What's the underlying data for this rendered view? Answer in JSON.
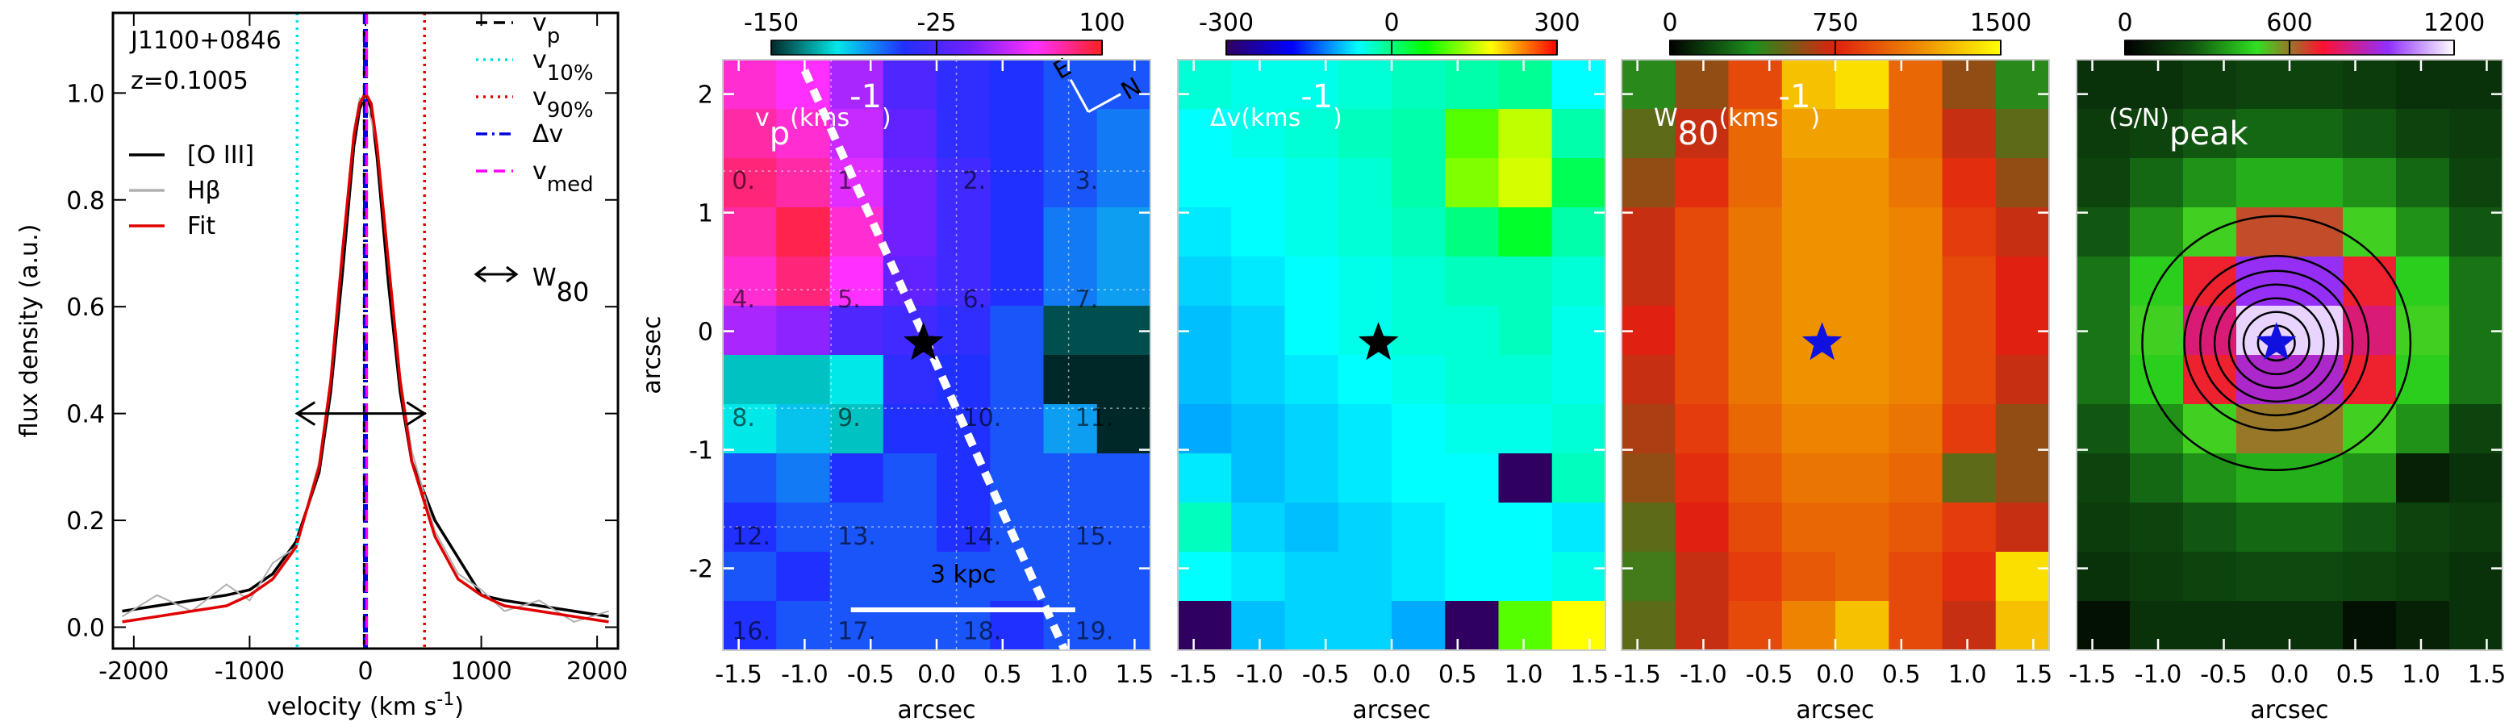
{
  "chart_data": [
    {
      "type": "line",
      "annotations": [
        "J1100+0846",
        "z=0.1005"
      ],
      "xlabel": [
        {
          "text": "velocity (km s"
        },
        {
          "text": "-1",
          "style": "sup"
        },
        {
          "text": ")"
        }
      ],
      "ylabel": "flux density (a.u.)",
      "x": [
        -2100,
        -1800,
        -1500,
        -1200,
        -1000,
        -800,
        -600,
        -400,
        -300,
        -200,
        -100,
        -50,
        0,
        50,
        100,
        200,
        300,
        400,
        600,
        800,
        1000,
        1200,
        1500,
        1800,
        2100
      ],
      "series": [
        {
          "name": "[O III]",
          "color": "#000000",
          "values": [
            0.03,
            0.04,
            0.05,
            0.06,
            0.07,
            0.1,
            0.16,
            0.29,
            0.44,
            0.66,
            0.9,
            0.97,
            1.0,
            0.97,
            0.88,
            0.64,
            0.44,
            0.31,
            0.2,
            0.13,
            0.06,
            0.05,
            0.04,
            0.03,
            0.02
          ]
        },
        {
          "name": "Hβ",
          "color": "#b0b0b0",
          "values": [
            0.02,
            0.06,
            0.03,
            0.08,
            0.05,
            0.12,
            0.15,
            0.31,
            0.46,
            0.7,
            0.93,
            0.99,
            0.98,
            0.95,
            0.9,
            0.68,
            0.47,
            0.33,
            0.18,
            0.1,
            0.07,
            0.03,
            0.05,
            0.01,
            0.03
          ]
        },
        {
          "name": "Fit",
          "color": "#e00000",
          "values": [
            0.01,
            0.02,
            0.03,
            0.04,
            0.06,
            0.09,
            0.15,
            0.3,
            0.46,
            0.7,
            0.92,
            0.98,
            1.0,
            0.98,
            0.9,
            0.68,
            0.46,
            0.31,
            0.17,
            0.09,
            0.06,
            0.04,
            0.03,
            0.02,
            0.01
          ]
        }
      ],
      "vlines": [
        {
          "label": [
            {
              "text": "v"
            },
            {
              "text": "p",
              "style": "sub"
            }
          ],
          "x": -10,
          "color": "#000000",
          "dash": "dashed"
        },
        {
          "label": [
            {
              "text": "v"
            },
            {
              "text": "10%",
              "style": "sub"
            }
          ],
          "x": -590,
          "color": "#00e0e0",
          "dash": "dotted"
        },
        {
          "label": [
            {
              "text": "v"
            },
            {
              "text": "90%",
              "style": "sub"
            }
          ],
          "x": 510,
          "color": "#e00000",
          "dash": "dotted"
        },
        {
          "label": [
            {
              "text": "Δv"
            }
          ],
          "x": 0,
          "color": "#0000e0",
          "dash": "dashdot"
        },
        {
          "label": [
            {
              "text": "v"
            },
            {
              "text": "med",
              "style": "sub"
            }
          ],
          "x": 10,
          "color": "#ff00ff",
          "dash": "dashed"
        }
      ],
      "w80": {
        "label": [
          {
            "text": "W"
          },
          {
            "text": "80",
            "style": "sub"
          }
        ],
        "x": [
          -590,
          510
        ],
        "y": 0.4
      },
      "xlim": [
        -2180,
        2180
      ],
      "ylim": [
        -0.04,
        1.15
      ],
      "xticks": [
        -2000,
        -1000,
        0,
        1000,
        2000
      ],
      "yticks": [
        {
          "value": 0,
          "label": "0.0"
        },
        0.2,
        0.4,
        0.6,
        {
          "value": 0.8,
          "label": "0.8"
        },
        {
          "value": 1,
          "label": "1.0"
        }
      ]
    },
    {
      "type": "heatmap",
      "title_parts": [
        {
          "text": "v"
        },
        {
          "text": "p",
          "style": "sub"
        },
        {
          "text": "(kms"
        },
        {
          "text": "-1",
          "style": "sup"
        },
        {
          "text": ")"
        }
      ],
      "xlabel": "arcsec",
      "ylabel": "arcsec",
      "clim": [
        -150,
        100
      ],
      "cticks": [
        -150,
        -25,
        100
      ],
      "colormap": [
        "#002828",
        "#00e8e8",
        "#2030ff",
        "#7020ff",
        "#ff30ff",
        "#ff2020"
      ],
      "xlim": [
        -1.62,
        1.62
      ],
      "ylim": [
        -2.69,
        2.29
      ],
      "xticks": [
        -1.5,
        {
          "value": -1,
          "label": "-1.0"
        },
        -0.5,
        {
          "value": 0,
          "label": "0.0"
        },
        0.5,
        {
          "value": 1,
          "label": "1.0"
        },
        1.5
      ],
      "yticks": [
        -2,
        -1,
        0,
        1,
        2
      ],
      "marker": {
        "x": -0.1,
        "y": -0.1,
        "color": "#000000"
      },
      "region_labels": [
        "0.",
        "1.",
        "2.",
        "3.",
        "4.",
        "5.",
        "6.",
        "7.",
        "8.",
        "9.",
        "10.",
        "11.",
        "12.",
        "13.",
        "14.",
        "15.",
        "16.",
        "17.",
        "18.",
        "19."
      ],
      "compass": [
        "E",
        "N"
      ],
      "scalebar": "3 kpc",
      "image": [
        [
          60,
          50,
          20,
          -20,
          -40,
          -50,
          -60,
          -60
        ],
        [
          70,
          60,
          30,
          -10,
          -40,
          -50,
          -60,
          -70
        ],
        [
          80,
          70,
          40,
          0,
          -30,
          -50,
          -60,
          -70
        ],
        [
          70,
          90,
          60,
          0,
          -30,
          -50,
          -70,
          -80
        ],
        [
          60,
          80,
          50,
          -10,
          -30,
          -50,
          -70,
          -80
        ],
        [
          20,
          10,
          -20,
          -30,
          -40,
          -60,
          -140,
          -140
        ],
        [
          -110,
          -110,
          -100,
          -40,
          -50,
          -60,
          -150,
          -150
        ],
        [
          -100,
          -90,
          -110,
          -50,
          -50,
          -60,
          -80,
          -150
        ],
        [
          -60,
          -70,
          -50,
          -60,
          -50,
          -60,
          -60,
          -60
        ],
        [
          -50,
          -60,
          -60,
          -60,
          -50,
          -60,
          -60,
          -60
        ],
        [
          -60,
          -50,
          -60,
          -60,
          -60,
          -60,
          -60,
          -60
        ],
        [
          -50,
          -60,
          -60,
          -60,
          -60,
          -50,
          -60,
          -60
        ]
      ]
    },
    {
      "type": "heatmap",
      "title_parts": [
        {
          "text": "Δv(kms"
        },
        {
          "text": "-1",
          "style": "sup"
        },
        {
          "text": ")"
        }
      ],
      "xlabel": "arcsec",
      "clim": [
        -300,
        300
      ],
      "cticks": [
        -300,
        0,
        300
      ],
      "colormap": [
        "#300060",
        "#0000ff",
        "#00ffff",
        "#00ff00",
        "#ffff00",
        "#ff0000"
      ],
      "xlim": [
        -1.62,
        1.62
      ],
      "ylim": [
        -2.69,
        2.29
      ],
      "xticks": [
        -1.5,
        {
          "value": -1,
          "label": "-1.0"
        },
        -0.5,
        {
          "value": 0,
          "label": "0.0"
        },
        0.5,
        {
          "value": 1,
          "label": "1.0"
        },
        1.5
      ],
      "marker": {
        "x": -0.1,
        "y": -0.1,
        "color": "#000000"
      },
      "image": [
        [
          -40,
          -50,
          -50,
          -40,
          -30,
          -20,
          -10,
          -60
        ],
        [
          -60,
          -50,
          -40,
          -30,
          -20,
          100,
          150,
          -20
        ],
        [
          -60,
          -60,
          -50,
          -40,
          -20,
          120,
          160,
          20
        ],
        [
          -70,
          -60,
          -50,
          -40,
          -30,
          0,
          40,
          -20
        ],
        [
          -80,
          -70,
          -60,
          -50,
          -40,
          -30,
          -30,
          -40
        ],
        [
          -90,
          -80,
          -60,
          -50,
          -40,
          -40,
          -30,
          -50
        ],
        [
          -90,
          -80,
          -70,
          -60,
          -50,
          -40,
          -40,
          -50
        ],
        [
          -100,
          -90,
          -80,
          -70,
          -60,
          -50,
          -50,
          -40
        ],
        [
          -70,
          -90,
          -80,
          -70,
          -60,
          -60,
          -300,
          -30
        ],
        [
          -30,
          -80,
          -90,
          -80,
          -70,
          -60,
          -60,
          -70
        ],
        [
          -60,
          -70,
          -80,
          -80,
          -70,
          -60,
          -60,
          -50
        ],
        [
          -300,
          -90,
          -80,
          -80,
          -100,
          -300,
          100,
          180
        ]
      ]
    },
    {
      "type": "heatmap",
      "title_parts": [
        {
          "text": "W"
        },
        {
          "text": "80",
          "style": "sub"
        },
        {
          "text": "(kms"
        },
        {
          "text": "-1",
          "style": "sup"
        },
        {
          "text": ")"
        }
      ],
      "xlabel": "arcsec",
      "clim": [
        0,
        1500
      ],
      "cticks": [
        0,
        750,
        1500
      ],
      "colormap": [
        "#000000",
        "#1c901c",
        "#e02010",
        "#ee8a00",
        "#ffff00"
      ],
      "xlim": [
        -1.62,
        1.62
      ],
      "ylim": [
        -2.69,
        2.29
      ],
      "xticks": [
        -1.5,
        {
          "value": -1,
          "label": "-1.0"
        },
        -0.5,
        {
          "value": 0,
          "label": "0.0"
        },
        0.5,
        {
          "value": 1,
          "label": "1.0"
        },
        1.5
      ],
      "marker": {
        "x": -0.1,
        "y": -0.1,
        "color": "#1010e0"
      },
      "image": [
        [
          400,
          600,
          900,
          1300,
          1400,
          1000,
          600,
          400
        ],
        [
          500,
          700,
          1000,
          1200,
          1200,
          1000,
          700,
          500
        ],
        [
          600,
          800,
          1000,
          1150,
          1150,
          1050,
          800,
          600
        ],
        [
          700,
          900,
          1050,
          1150,
          1150,
          1100,
          850,
          700
        ],
        [
          700,
          900,
          1050,
          1150,
          1150,
          1100,
          900,
          750
        ],
        [
          750,
          900,
          1050,
          1150,
          1150,
          1100,
          900,
          750
        ],
        [
          700,
          900,
          1050,
          1150,
          1150,
          1100,
          900,
          700
        ],
        [
          650,
          850,
          1000,
          1100,
          1100,
          1050,
          850,
          600
        ],
        [
          600,
          800,
          950,
          1050,
          1050,
          1000,
          500,
          600
        ],
        [
          500,
          750,
          900,
          1000,
          1000,
          950,
          850,
          700
        ],
        [
          450,
          700,
          850,
          950,
          1000,
          900,
          800,
          1400
        ],
        [
          500,
          700,
          900,
          1100,
          1300,
          900,
          700,
          1300
        ]
      ]
    },
    {
      "type": "heatmap",
      "title_parts": [
        {
          "text": "(S/N)"
        },
        {
          "text": "peak",
          "style": "sub"
        }
      ],
      "xlabel": "arcsec",
      "clim": [
        0,
        1200
      ],
      "cticks": [
        0,
        600,
        1200
      ],
      "colormap": [
        "#000000",
        "#105010",
        "#30e020",
        "#ff1030",
        "#9030ff",
        "#ffffff"
      ],
      "xlim": [
        -1.62,
        1.62
      ],
      "ylim": [
        -2.69,
        2.29
      ],
      "xticks": [
        -1.5,
        {
          "value": -1,
          "label": "-1.0"
        },
        -0.5,
        {
          "value": 0,
          "label": "0.0"
        },
        0.5,
        {
          "value": 1,
          "label": "1.0"
        },
        1.5
      ],
      "marker": {
        "x": -0.1,
        "y": -0.1,
        "color": "#1010e0"
      },
      "contours": true,
      "image": [
        [
          150,
          150,
          180,
          200,
          200,
          180,
          150,
          150
        ],
        [
          180,
          200,
          250,
          280,
          280,
          250,
          200,
          180
        ],
        [
          200,
          280,
          350,
          400,
          400,
          350,
          280,
          200
        ],
        [
          250,
          350,
          500,
          650,
          650,
          500,
          350,
          250
        ],
        [
          300,
          450,
          700,
          950,
          950,
          700,
          450,
          300
        ],
        [
          300,
          500,
          800,
          1150,
          1150,
          800,
          500,
          300
        ],
        [
          300,
          450,
          700,
          900,
          900,
          700,
          450,
          300
        ],
        [
          250,
          350,
          500,
          600,
          600,
          500,
          350,
          200
        ],
        [
          200,
          280,
          350,
          400,
          400,
          350,
          100,
          150
        ],
        [
          180,
          200,
          250,
          280,
          280,
          250,
          200,
          180
        ],
        [
          150,
          180,
          200,
          220,
          220,
          200,
          180,
          150
        ],
        [
          50,
          150,
          150,
          150,
          150,
          50,
          100,
          150
        ]
      ]
    }
  ]
}
